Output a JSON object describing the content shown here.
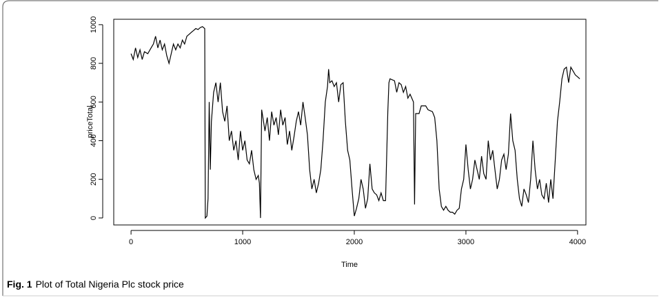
{
  "chart_data": {
    "type": "line",
    "x_label": "Time",
    "y_label": "priceTotal",
    "x": [
      0,
      20,
      40,
      60,
      80,
      100,
      120,
      150,
      180,
      200,
      220,
      240,
      260,
      280,
      300,
      320,
      340,
      360,
      380,
      400,
      420,
      440,
      460,
      480,
      500,
      520,
      540,
      560,
      580,
      600,
      620,
      640,
      660,
      665,
      680,
      690,
      700,
      710,
      720,
      740,
      760,
      780,
      800,
      820,
      840,
      860,
      880,
      900,
      920,
      940,
      960,
      980,
      1000,
      1020,
      1040,
      1060,
      1080,
      1100,
      1120,
      1140,
      1150,
      1160,
      1165,
      1170,
      1200,
      1220,
      1240,
      1260,
      1280,
      1300,
      1320,
      1340,
      1360,
      1380,
      1400,
      1420,
      1440,
      1460,
      1480,
      1500,
      1520,
      1540,
      1560,
      1580,
      1600,
      1620,
      1640,
      1660,
      1680,
      1700,
      1720,
      1740,
      1760,
      1770,
      1780,
      1800,
      1820,
      1840,
      1860,
      1880,
      1900,
      1920,
      1940,
      1960,
      1980,
      2000,
      2020,
      2040,
      2060,
      2080,
      2100,
      2120,
      2140,
      2160,
      2180,
      2200,
      2220,
      2240,
      2260,
      2280,
      2300,
      2310,
      2320,
      2360,
      2380,
      2400,
      2420,
      2440,
      2460,
      2480,
      2500,
      2530,
      2540,
      2550,
      2580,
      2600,
      2640,
      2660,
      2700,
      2720,
      2740,
      2760,
      2780,
      2800,
      2820,
      2840,
      2860,
      2880,
      2900,
      2920,
      2940,
      2960,
      2980,
      3000,
      3020,
      3040,
      3060,
      3080,
      3100,
      3120,
      3140,
      3160,
      3180,
      3200,
      3220,
      3240,
      3260,
      3280,
      3300,
      3320,
      3340,
      3360,
      3380,
      3400,
      3420,
      3440,
      3460,
      3480,
      3500,
      3520,
      3540,
      3560,
      3580,
      3600,
      3620,
      3640,
      3660,
      3680,
      3700,
      3720,
      3740,
      3760,
      3780,
      3800,
      3820,
      3840,
      3860,
      3880,
      3900,
      3920,
      3940,
      3960,
      3980,
      4000,
      4020
    ],
    "series": [
      {
        "name": "priceTotal",
        "color": "#000000",
        "values": [
          850,
          820,
          880,
          830,
          870,
          820,
          860,
          850,
          880,
          900,
          940,
          880,
          920,
          870,
          900,
          840,
          800,
          850,
          900,
          870,
          900,
          880,
          920,
          900,
          940,
          950,
          960,
          970,
          980,
          975,
          985,
          990,
          980,
          0,
          10,
          100,
          600,
          250,
          500,
          650,
          700,
          600,
          700,
          550,
          500,
          580,
          400,
          450,
          350,
          400,
          300,
          450,
          350,
          400,
          300,
          280,
          350,
          250,
          200,
          220,
          180,
          0,
          300,
          560,
          450,
          520,
          400,
          550,
          480,
          520,
          430,
          560,
          480,
          520,
          380,
          450,
          350,
          420,
          500,
          550,
          480,
          600,
          520,
          430,
          250,
          150,
          200,
          130,
          180,
          250,
          400,
          600,
          680,
          770,
          700,
          710,
          680,
          700,
          600,
          690,
          700,
          500,
          350,
          300,
          150,
          10,
          50,
          100,
          200,
          150,
          50,
          100,
          280,
          150,
          130,
          120,
          90,
          130,
          90,
          90,
          550,
          700,
          720,
          710,
          650,
          700,
          690,
          650,
          680,
          620,
          640,
          600,
          70,
          540,
          540,
          580,
          580,
          560,
          550,
          520,
          400,
          150,
          60,
          40,
          60,
          40,
          30,
          30,
          20,
          40,
          50,
          150,
          200,
          380,
          250,
          150,
          200,
          300,
          250,
          200,
          320,
          230,
          200,
          400,
          300,
          350,
          250,
          150,
          200,
          300,
          330,
          250,
          330,
          540,
          400,
          350,
          200,
          100,
          60,
          150,
          120,
          80,
          200,
          400,
          250,
          150,
          200,
          120,
          100,
          180,
          80,
          200,
          100,
          300,
          500,
          600,
          720,
          770,
          780,
          700,
          780,
          760,
          740,
          730,
          720
        ]
      }
    ],
    "xlim": [
      -155,
      4075
    ],
    "xticks": [
      0,
      1000,
      2000,
      3000,
      4000
    ],
    "ylim": [
      -36,
      1028
    ],
    "yticks": [
      0,
      200,
      400,
      600,
      800,
      1000
    ]
  },
  "caption": {
    "label": "Fig. 1",
    "text": "Plot of Total Nigeria Plc stock price"
  }
}
